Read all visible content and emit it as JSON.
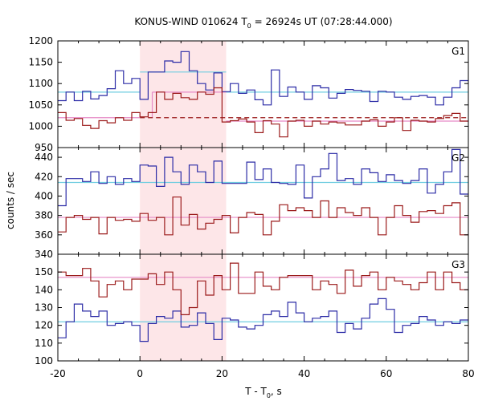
{
  "chart_data": {
    "type": "line",
    "title_main": "KONUS-WIND 010624 T",
    "title_sub": "0",
    "title_rest": " = 26924s UT (07:28:44.000)",
    "xlabel_main": "T - T",
    "xlabel_sub": "0",
    "xlabel_rest": ", s",
    "ylabel": "counts / sec",
    "xlim": [
      -20,
      80
    ],
    "x_ticks": [
      "-20",
      "0",
      "20",
      "40",
      "60",
      "80"
    ],
    "bin_edges": [
      -20,
      -18,
      -16,
      -14,
      -12,
      -10,
      -8,
      -6,
      -4,
      -2,
      0,
      2,
      4,
      6,
      8,
      10,
      12,
      14,
      16,
      18,
      20,
      22,
      24,
      26,
      28,
      30,
      32,
      34,
      36,
      38,
      40,
      42,
      44,
      46,
      48,
      50,
      52,
      54,
      56,
      58,
      60,
      62,
      64,
      66,
      68,
      70,
      72,
      74,
      76,
      78,
      80
    ],
    "shaded_interval": [
      0,
      21
    ],
    "colors": {
      "blue": "#2b2ba6",
      "red": "#9b1a1a",
      "cyan": "#6fcde0",
      "pink": "#e68ac6",
      "shade": "#fde6e8"
    },
    "panels": [
      {
        "label": "G1",
        "ylim": [
          950,
          1200
        ],
        "y_ticks": [
          "950",
          "1000",
          "1050",
          "1100",
          "1150",
          "1200"
        ],
        "series_blue": [
          1060,
          1080,
          1060,
          1082,
          1064,
          1072,
          1088,
          1130,
          1100,
          1112,
          1063,
          1127,
          1127,
          1153,
          1150,
          1175,
          1130,
          1100,
          1085,
          1125,
          1081,
          1100,
          1077,
          1085,
          1062,
          1050,
          1132,
          1070,
          1092,
          1080,
          1063,
          1095,
          1090,
          1066,
          1077,
          1086,
          1084,
          1082,
          1058,
          1082,
          1080,
          1068,
          1063,
          1070,
          1072,
          1068,
          1050,
          1068,
          1090,
          1107
        ],
        "series_red": [
          1032,
          1014,
          1018,
          1002,
          995,
          1013,
          1008,
          1020,
          1014,
          1032,
          1022,
          1032,
          1080,
          1063,
          1077,
          1067,
          1063,
          1080,
          1075,
          1090,
          1010,
          1013,
          1017,
          1010,
          985,
          1013,
          1005,
          975,
          1012,
          1014,
          1000,
          1012,
          1005,
          1010,
          1008,
          1003,
          1003,
          1012,
          1015,
          1000,
          1010,
          1020,
          990,
          1014,
          1012,
          1010,
          1018,
          1025,
          1030,
          1012
        ],
        "bg_blue": 1080,
        "bg_red": 1020,
        "burst_blue": 1127,
        "burst_red": 1080
      },
      {
        "label": "G2",
        "ylim": [
          340,
          450
        ],
        "y_ticks": [
          "340",
          "360",
          "380",
          "400",
          "420",
          "440"
        ],
        "series_blue": [
          390,
          418,
          418,
          415,
          425,
          413,
          420,
          412,
          418,
          415,
          432,
          431,
          410,
          440,
          425,
          412,
          432,
          425,
          414,
          436,
          413,
          413,
          413,
          435,
          417,
          428,
          414,
          413,
          412,
          432,
          398,
          420,
          428,
          444,
          416,
          418,
          412,
          428,
          424,
          415,
          422,
          416,
          413,
          416,
          428,
          403,
          412,
          425,
          448,
          402
        ],
        "series_red": [
          363,
          378,
          380,
          376,
          378,
          361,
          378,
          375,
          376,
          374,
          382,
          375,
          378,
          360,
          399,
          370,
          381,
          366,
          372,
          376,
          380,
          362,
          378,
          383,
          381,
          360,
          374,
          391,
          385,
          388,
          385,
          378,
          395,
          378,
          388,
          383,
          380,
          388,
          378,
          360,
          378,
          390,
          380,
          373,
          384,
          385,
          382,
          390,
          393,
          360
        ],
        "bg_blue": 414,
        "bg_red": 378
      },
      {
        "label": "G3",
        "ylim": [
          100,
          160
        ],
        "y_ticks": [
          "100",
          "110",
          "120",
          "130",
          "140",
          "150"
        ],
        "series_blue": [
          113,
          122,
          132,
          128,
          125,
          128,
          120,
          121,
          122,
          120,
          111,
          121,
          125,
          124,
          128,
          119,
          120,
          127,
          121,
          112,
          124,
          123,
          119,
          118,
          120,
          126,
          128,
          125,
          133,
          127,
          122,
          124,
          125,
          128,
          116,
          121,
          118,
          124,
          132,
          135,
          129,
          116,
          120,
          121,
          125,
          123,
          120,
          122,
          121,
          123
        ],
        "series_red": [
          150,
          148,
          148,
          152,
          145,
          136,
          143,
          145,
          140,
          146,
          146,
          149,
          143,
          150,
          140,
          126,
          130,
          145,
          137,
          148,
          140,
          155,
          138,
          138,
          150,
          142,
          140,
          147,
          148,
          148,
          148,
          140,
          145,
          143,
          138,
          151,
          142,
          148,
          150,
          140,
          147,
          145,
          143,
          140,
          144,
          150,
          140,
          150,
          144,
          140
        ],
        "bg_blue": 122,
        "bg_red": 147
      }
    ]
  }
}
